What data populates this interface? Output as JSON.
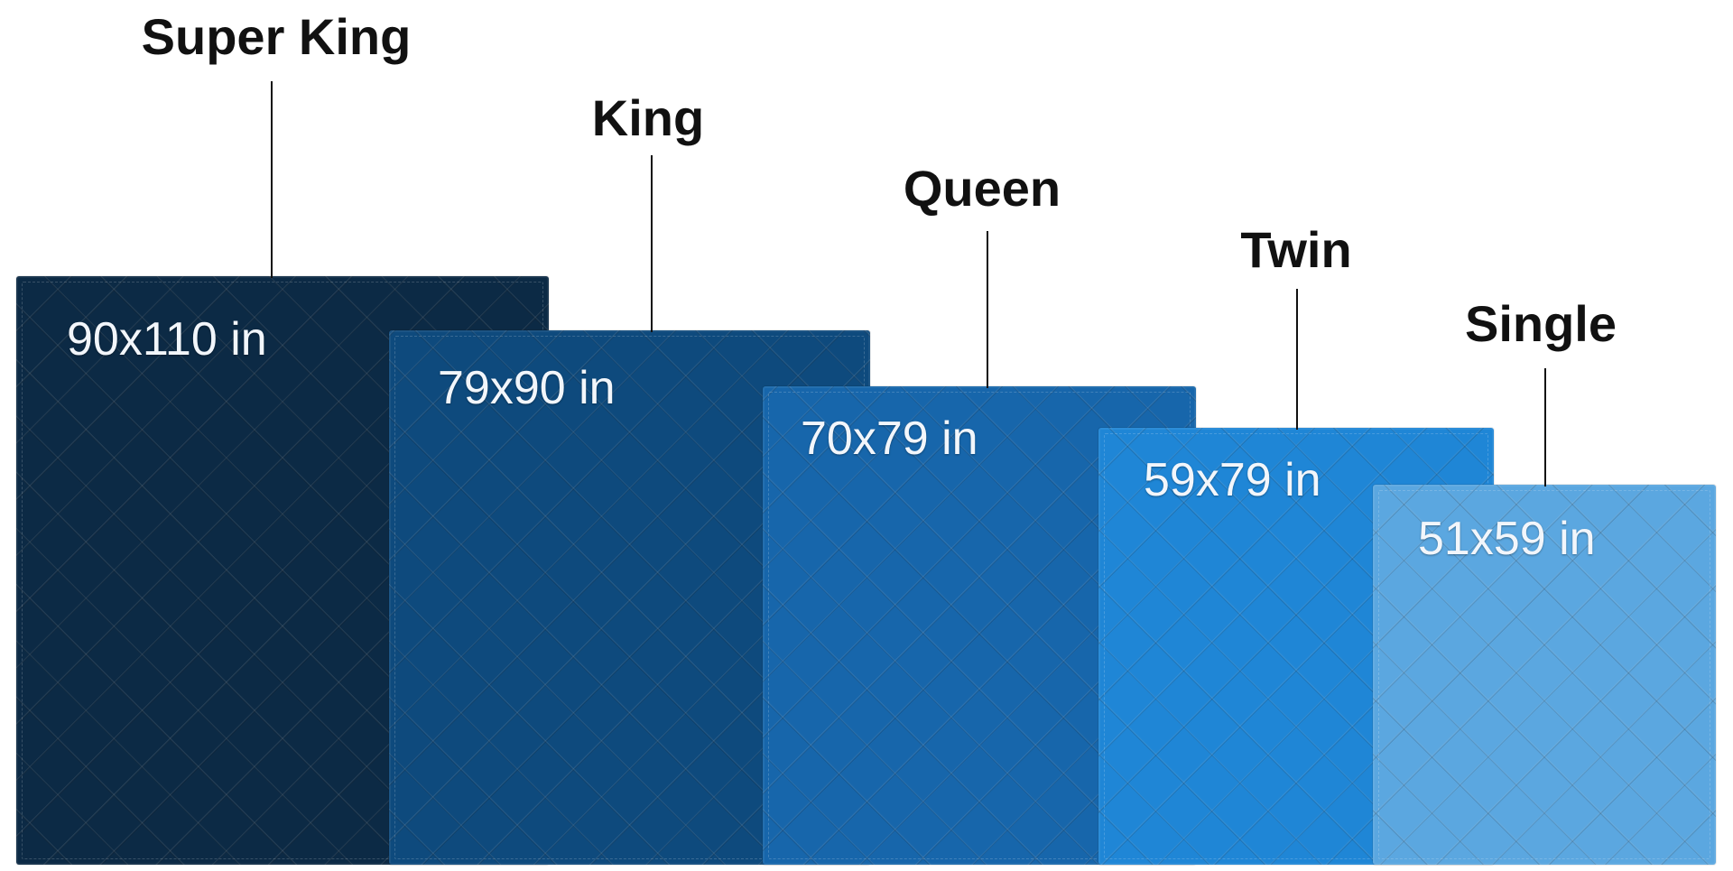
{
  "diagram": {
    "items": [
      {
        "name": "Super King",
        "size": "90x110 in",
        "color": "#0c2a45"
      },
      {
        "name": "King",
        "size": "79x90 in",
        "color": "#0e4a7d"
      },
      {
        "name": "Queen",
        "size": "70x79 in",
        "color": "#1766ab"
      },
      {
        "name": "Twin",
        "size": "59x79 in",
        "color": "#1f86d6"
      },
      {
        "name": "Single",
        "size": "51x59 in",
        "color": "#5ba7e0"
      }
    ]
  }
}
